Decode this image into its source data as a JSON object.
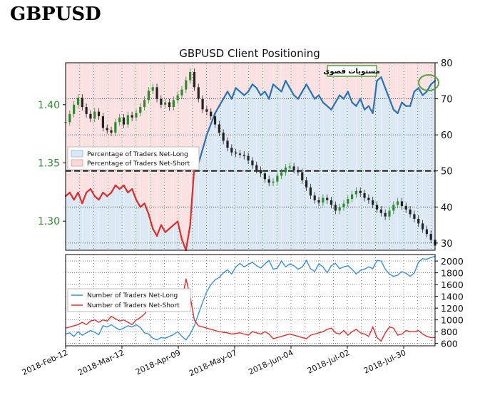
{
  "page_heading": "GBPUSD",
  "chart_data": [
    {
      "type": "line",
      "title": "GBPUSD Client Positioning",
      "annotation": "مستويات قصوى",
      "price_axis": {
        "ticks": [
          "1.30",
          "1.35",
          "1.40"
        ],
        "range": [
          1.275,
          1.436
        ]
      },
      "pct_axis": {
        "ticks": [
          "30",
          "40",
          "50",
          "60",
          "70",
          "80"
        ],
        "range": [
          28,
          80
        ]
      },
      "reference_line": 50,
      "legend": [
        "Percentage of Traders Net-Long",
        "Percentage of Traders Net-Short"
      ],
      "legend_position": "upper-left",
      "grid": true,
      "colors": {
        "net_long_fill": "#dce9f5",
        "net_short_fill": "#fbe1e1",
        "net_long_line": "#2b72b5",
        "net_short_line": "#e02b2b",
        "price_up": "#2e8b2e",
        "price_down": "#222222",
        "grid": "#33a033",
        "price_axis_text": "#2e8b2e",
        "annotation_border": "#54a33c"
      },
      "series": [
        {
          "name": "Percentage of Traders Net-Long",
          "values": [
            43,
            44,
            42,
            44,
            41,
            44,
            45,
            43,
            42,
            44,
            43,
            44,
            46,
            45,
            46,
            44,
            45,
            42,
            40,
            41,
            38,
            34,
            32,
            35,
            33,
            34,
            35,
            36,
            31,
            28,
            35,
            51,
            52,
            56,
            60,
            63,
            66,
            68,
            70,
            72,
            70,
            73,
            72,
            71,
            72,
            74,
            73,
            71,
            72,
            70,
            74,
            73,
            72,
            75,
            73,
            71,
            70,
            72,
            74,
            72,
            70,
            71,
            69,
            68,
            67,
            69,
            71,
            70,
            72,
            69,
            68,
            70,
            67,
            68,
            66,
            75,
            76,
            73,
            70,
            67,
            66,
            69,
            68,
            68,
            72,
            73,
            71,
            72,
            74,
            75
          ]
        },
        {
          "name": "GBPUSD price",
          "values": [
            1.385,
            1.392,
            1.4,
            1.406,
            1.398,
            1.392,
            1.388,
            1.394,
            1.39,
            1.38,
            1.378,
            1.376,
            1.385,
            1.389,
            1.383,
            1.391,
            1.389,
            1.393,
            1.398,
            1.404,
            1.412,
            1.415,
            1.405,
            1.4,
            1.402,
            1.398,
            1.404,
            1.408,
            1.413,
            1.421,
            1.428,
            1.415,
            1.405,
            1.396,
            1.394,
            1.39,
            1.383,
            1.376,
            1.369,
            1.363,
            1.359,
            1.358,
            1.357,
            1.356,
            1.352,
            1.348,
            1.344,
            1.341,
            1.336,
            1.333,
            1.334,
            1.339,
            1.342,
            1.346,
            1.347,
            1.344,
            1.342,
            1.335,
            1.329,
            1.322,
            1.318,
            1.316,
            1.32,
            1.318,
            1.314,
            1.309,
            1.312,
            1.315,
            1.319,
            1.323,
            1.326,
            1.324,
            1.32,
            1.318,
            1.314,
            1.31,
            1.307,
            1.304,
            1.309,
            1.314,
            1.317,
            1.313,
            1.31,
            1.306,
            1.302,
            1.298,
            1.293,
            1.289,
            1.284,
            1.279
          ]
        }
      ]
    },
    {
      "type": "line",
      "axis": {
        "ticks": [
          "600",
          "800",
          "1000",
          "1200",
          "1400",
          "1600",
          "1800",
          "2000"
        ],
        "range": [
          560,
          2110
        ]
      },
      "legend": [
        "Number of Traders Net-Long",
        "Number of Traders Net-Short"
      ],
      "legend_position": "upper-left",
      "grid": true,
      "x_ticks": [
        "2018-Feb-12",
        "2018-Mar-12",
        "2018-Apr-09",
        "2018-May-07",
        "2018-Jun-04",
        "2018-Jul-02",
        "2018-Jul-30"
      ],
      "colors": {
        "net_long": "#3b8fd9",
        "net_short": "#e03030"
      },
      "series": [
        {
          "name": "Number of Traders Net-Long",
          "values": [
            760,
            780,
            720,
            800,
            740,
            780,
            820,
            790,
            750,
            900,
            880,
            920,
            870,
            830,
            860,
            900,
            880,
            920,
            870,
            780,
            760,
            690,
            660,
            700,
            690,
            720,
            750,
            800,
            720,
            660,
            760,
            900,
            1100,
            1300,
            1480,
            1600,
            1680,
            1720,
            1800,
            1850,
            1780,
            1900,
            1960,
            1900,
            1940,
            1980,
            1920,
            1880,
            1950,
            2010,
            1860,
            1880,
            2000,
            1900,
            1950,
            1920,
            1860,
            1900,
            2010,
            1870,
            1820,
            1950,
            1900,
            1800,
            1920,
            1960,
            1870,
            1900,
            1920,
            1860,
            1780,
            1840,
            1860,
            1900,
            1870,
            2010,
            2000,
            1860,
            1780,
            1740,
            1760,
            1820,
            1790,
            1740,
            1800,
            1980,
            2040,
            2030,
            2060,
            2080
          ]
        },
        {
          "name": "Number of Traders Net-Short",
          "values": [
            860,
            880,
            900,
            920,
            960,
            920,
            980,
            1000,
            960,
            1000,
            980,
            1060,
            1020,
            980,
            1000,
            960,
            920,
            1000,
            1040,
            1100,
            1200,
            1260,
            1300,
            1240,
            1250,
            1260,
            1240,
            1200,
            1320,
            1700,
            1400,
            1000,
            900,
            880,
            860,
            840,
            820,
            800,
            790,
            780,
            760,
            770,
            780,
            760,
            740,
            800,
            780,
            760,
            800,
            760,
            680,
            700,
            720,
            740,
            760,
            740,
            720,
            700,
            680,
            740,
            760,
            780,
            800,
            840,
            860,
            780,
            760,
            820,
            740,
            800,
            840,
            780,
            760,
            720,
            880,
            700,
            640,
            780,
            880,
            860,
            740,
            760,
            820,
            800,
            800,
            820,
            760,
            720,
            700,
            700
          ]
        }
      ]
    }
  ]
}
